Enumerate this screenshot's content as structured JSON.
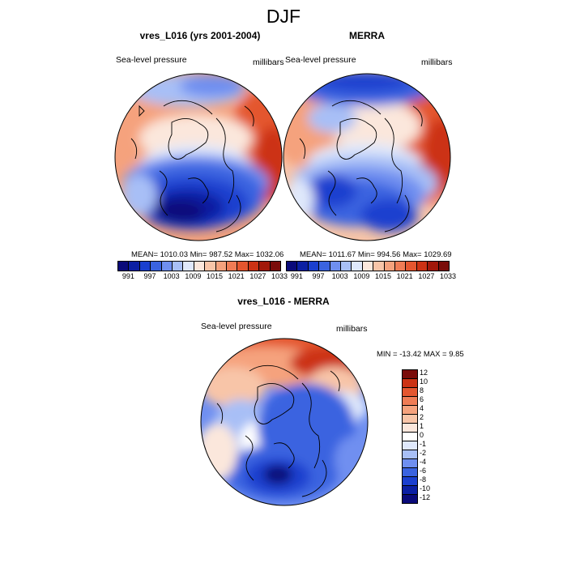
{
  "title": "DJF",
  "panels": [
    {
      "id": "model",
      "title": "vres_L016 (yrs 2001-2004)",
      "left_label": "Sea-level pressure",
      "right_label": "millibars",
      "stats": {
        "mean": "1010.03",
        "min": "987.52",
        "max": "1032.06"
      },
      "stats_text": "MEAN= 1010.03  Min= 987.52  Max= 1032.06"
    },
    {
      "id": "obs",
      "title": "MERRA",
      "left_label": "Sea-level pressure",
      "right_label": "millibars",
      "stats": {
        "mean": "1011.67",
        "min": "994.56",
        "max": "1029.69"
      },
      "stats_text": "MEAN= 1011.67  Min= 994.56  Max= 1029.69"
    },
    {
      "id": "diff",
      "title": "vres_L016 - MERRA",
      "left_label": "Sea-level pressure",
      "right_label": "millibars",
      "stats": {
        "min": "-13.42",
        "max": "9.85"
      },
      "stats_text": "MIN = -13.42  MAX =   9.85"
    }
  ],
  "colorbar_abs": {
    "colors": [
      "#0a0a7a",
      "#0b1fa3",
      "#1a3fcf",
      "#3a63e0",
      "#6f8ff0",
      "#a8bff6",
      "#dfe8fb",
      "#fbe7dc",
      "#f8c5a8",
      "#f5a27d",
      "#ef7c55",
      "#e4562f",
      "#cc3214",
      "#a2180a",
      "#7a0c0a"
    ],
    "ticks": [
      "991",
      "997",
      "1003",
      "1009",
      "1015",
      "1021",
      "1027",
      "1033"
    ]
  },
  "colorbar_diff": {
    "colors": [
      "#0a0a7a",
      "#0b1fa3",
      "#1a3fcf",
      "#3a63e0",
      "#6f8ff0",
      "#a8bff6",
      "#dfe8fb",
      "#ffffff",
      "#fbe7dc",
      "#f8c5a8",
      "#f5a27d",
      "#ef7c55",
      "#e4562f",
      "#cc3214",
      "#7a0c0a"
    ],
    "ticks": [
      "12",
      "10",
      "8",
      "6",
      "4",
      "2",
      "1",
      "0",
      "-1",
      "-2",
      "-4",
      "-6",
      "-8",
      "-10",
      "-12"
    ]
  }
}
